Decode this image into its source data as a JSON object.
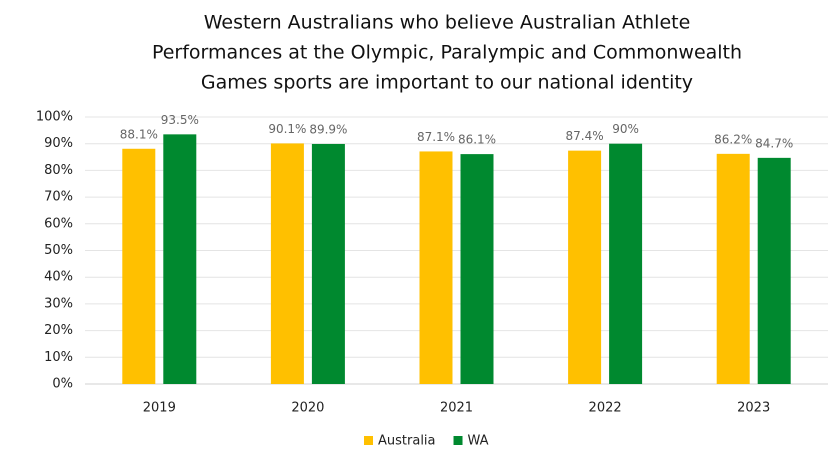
{
  "chart_data": {
    "type": "bar",
    "title": [
      "Western Australians who believe Australian Athlete",
      "Performances at the Olympic, Paralympic and Commonwealth",
      "Games sports are important to our national identity"
    ],
    "categories": [
      "2019",
      "2020",
      "2021",
      "2022",
      "2023"
    ],
    "series": [
      {
        "name": "Australia",
        "color": "#ffc000",
        "values": [
          88.1,
          90.1,
          87.1,
          87.4,
          86.2
        ],
        "value_labels": [
          "88.1%",
          "90.1%",
          "87.1%",
          "87.4%",
          "86.2%"
        ]
      },
      {
        "name": "WA",
        "color": "#00892f",
        "values": [
          93.5,
          89.9,
          86.1,
          90,
          84.7
        ],
        "value_labels": [
          "93.5%",
          "89.9%",
          "86.1%",
          "90%",
          "84.7%"
        ]
      }
    ],
    "ylim": [
      0,
      100
    ],
    "yticks": [
      {
        "value": 0,
        "label": "0%"
      },
      {
        "value": 10,
        "label": "10%"
      },
      {
        "value": 20,
        "label": "20%"
      },
      {
        "value": 30,
        "label": "30%"
      },
      {
        "value": 40,
        "label": "40%"
      },
      {
        "value": 50,
        "label": "50%"
      },
      {
        "value": 60,
        "label": "60%"
      },
      {
        "value": 70,
        "label": "70%"
      },
      {
        "value": 80,
        "label": "80%"
      },
      {
        "value": 90,
        "label": "90%"
      },
      {
        "value": 100,
        "label": "100%"
      }
    ],
    "grid": true,
    "legend": "bottom"
  }
}
